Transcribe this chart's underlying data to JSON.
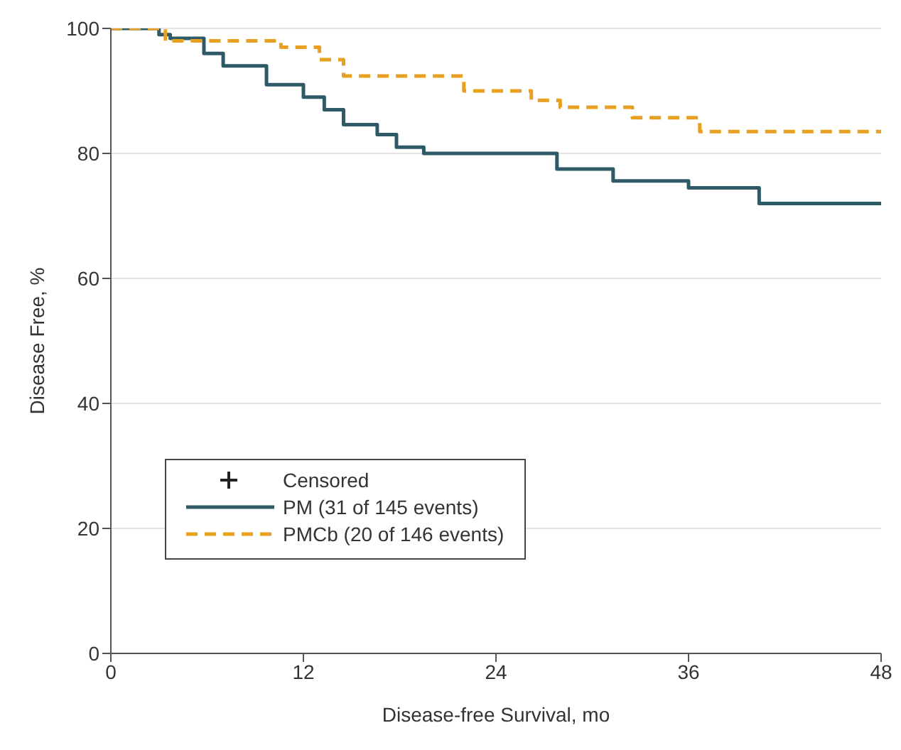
{
  "chart_data": {
    "type": "step",
    "xlabel": "Disease-free Survival, mo",
    "ylabel": "Disease Free, %",
    "xlim": [
      0,
      48
    ],
    "xticks": [
      0,
      12,
      24,
      36,
      48
    ],
    "ylim": [
      0,
      100
    ],
    "yticks": [
      0,
      20,
      40,
      60,
      80,
      100
    ],
    "grid": "y",
    "legend": "bottom left",
    "legend_title": "Censored",
    "series": [
      {
        "name": "PM (31 of 145 events)",
        "color": "#2e5a68",
        "line_style": "solid",
        "x": [
          0,
          3,
          3.7,
          5.8,
          7,
          9.7,
          12,
          13.3,
          14.5,
          16.6,
          17.8,
          19.5,
          27.8,
          31.3,
          36,
          40.4,
          48
        ],
        "values": [
          100,
          99,
          98.4,
          96,
          94,
          91,
          89,
          87,
          84.6,
          83,
          81,
          80,
          77.5,
          75.6,
          74.5,
          72,
          72
        ]
      },
      {
        "name": "PMCb (20 of 146 events)",
        "color": "#e8a020",
        "line_style": "dashed",
        "x": [
          0,
          3.4,
          10.6,
          13,
          14.5,
          22,
          26.2,
          28,
          32.5,
          36.7,
          48
        ],
        "values": [
          100,
          98,
          97,
          95,
          92.4,
          90,
          88.5,
          87.4,
          85.7,
          83.5,
          83.5
        ]
      }
    ]
  }
}
